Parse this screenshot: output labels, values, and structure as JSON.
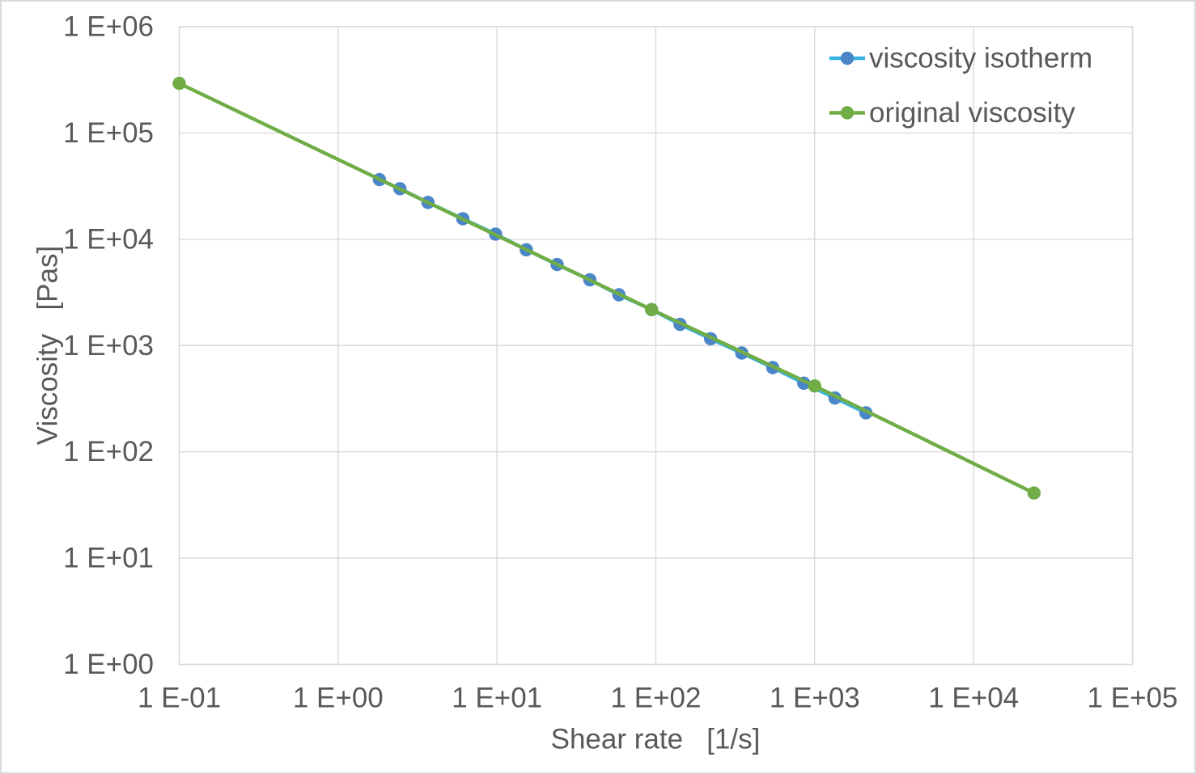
{
  "colors": {
    "background": "#ffffff",
    "canvas_border": "#d9d9d9",
    "gridline": "#d9d9d9",
    "plot_border": "#d9d9d9",
    "text": "#595959",
    "isotherm_line": "#38b3e6",
    "isotherm_marker": "#4a86c8",
    "original_line": "#70ad47",
    "original_marker": "#70ad47"
  },
  "chart_data": {
    "type": "line",
    "title": "",
    "x_scale": "log",
    "y_scale": "log",
    "xlabel": "Shear rate   [1/s]",
    "ylabel": "Viscosity   [Pas]",
    "xlim": [
      0.1,
      100000
    ],
    "ylim": [
      1,
      1000000
    ],
    "grid": true,
    "legend_position": "top-right-inside",
    "x_ticks": [
      0.1,
      1,
      10,
      100,
      1000,
      10000,
      100000
    ],
    "x_tick_labels": [
      "1 E-01",
      "1 E+00",
      "1 E+01",
      "1 E+02",
      "1 E+03",
      "1 E+04",
      "1 E+05"
    ],
    "y_ticks": [
      1,
      10,
      100,
      1000,
      10000,
      100000,
      1000000
    ],
    "y_tick_labels": [
      "1 E+00",
      "1 E+01",
      "1 E+02",
      "1 E+03",
      "1 E+04",
      "1 E+05",
      "1 E+06"
    ],
    "series": [
      {
        "name": "viscosity isotherm",
        "line_color": "#38b3e6",
        "marker_color": "#4a86c8",
        "x": [
          1.82,
          2.45,
          3.68,
          6.1,
          9.8,
          15.3,
          23.9,
          38.4,
          58.6,
          94,
          142,
          221,
          347,
          544,
          853,
          1340,
          2100
        ],
        "y": [
          36400,
          29900,
          22200,
          15600,
          11200,
          7970,
          5780,
          4160,
          3000,
          2180,
          1580,
          1160,
          851,
          620,
          442,
          321,
          233
        ]
      },
      {
        "name": "original viscosity",
        "line_color": "#70ad47",
        "marker_color": "#70ad47",
        "x": [
          0.1,
          94,
          1000,
          24000
        ],
        "y": [
          293000,
          2180,
          417,
          41
        ]
      }
    ]
  }
}
